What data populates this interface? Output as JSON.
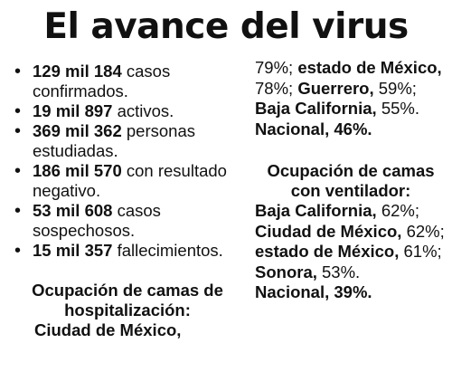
{
  "title": "El avance del virus",
  "stats": [
    {
      "num": "129 mil 184",
      "text": " casos confirmados."
    },
    {
      "num": "19 mil 897",
      "text": " activos."
    },
    {
      "num": "369 mil 362",
      "text": " personas estudiadas."
    },
    {
      "num": "186 mil 570",
      "text": " con resultado negativo."
    },
    {
      "num": "53 mil 608",
      "text": " casos sospechosos."
    },
    {
      "num": "15 mil 357",
      "text": " fallecimientos."
    }
  ],
  "hosp": {
    "heading": "Ocupación de camas de hospitalización:",
    "cdmx_label": "Ciudad de México,",
    "cdmx_value": "79%;",
    "edomex_label": "estado de México,",
    "edomex_value": "78%;",
    "guerrero_label": "Guerrero,",
    "guerrero_value": "59%;",
    "bc_label": "Baja California,",
    "bc_value": "55%.",
    "national": "Nacional, 46%."
  },
  "vent": {
    "heading": "Ocupación de camas con ventilador:",
    "bc_label": "Baja California,",
    "bc_value": "62%;",
    "cdmx_label": "Ciudad de México,",
    "cdmx_value": "62%;",
    "edomex_label": "estado de México,",
    "edomex_value": "61%;",
    "sonora_label": "Sonora,",
    "sonora_value": "53%.",
    "national": "Nacional, 39%."
  }
}
